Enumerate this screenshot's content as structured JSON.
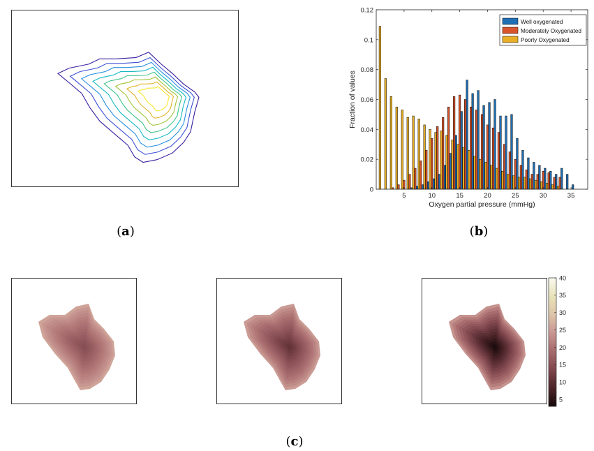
{
  "captions": {
    "a": "a",
    "b": "b",
    "c": "c"
  },
  "chart_data": [
    {
      "panel": "a",
      "type": "contour",
      "colors": [
        "#3a1e9e",
        "#3d4fd6",
        "#2a8fe0",
        "#16b9c4",
        "#3ec48a",
        "#a3c43b",
        "#e3b52b",
        "#f7e62a"
      ]
    },
    {
      "panel": "b",
      "type": "bar",
      "xlabel": "Oxygen partial pressure (mmHg)",
      "ylabel": "Fraction of values",
      "xlim": [
        0,
        38
      ],
      "ylim": [
        0,
        0.12
      ],
      "xticks": [
        5,
        10,
        15,
        20,
        25,
        30,
        35
      ],
      "yticks": [
        0,
        0.02,
        0.04,
        0.06,
        0.08,
        0.1,
        0.12
      ],
      "legend_position": "top-right",
      "x": [
        1,
        2,
        3,
        4,
        5,
        6,
        7,
        8,
        9,
        10,
        11,
        12,
        13,
        14,
        15,
        16,
        17,
        18,
        19,
        20,
        21,
        22,
        23,
        24,
        25,
        26,
        27,
        28,
        29,
        30,
        31,
        32,
        33,
        34,
        35,
        36,
        37
      ],
      "series": [
        {
          "name": "Well oxygenated",
          "color": "#1f6fb4",
          "values": [
            0,
            0,
            0,
            0,
            0,
            0.001,
            0.002,
            0.003,
            0.005,
            0.007,
            0.01,
            0.016,
            0.024,
            0.036,
            0.052,
            0.073,
            0.064,
            0.066,
            0.056,
            0.058,
            0.06,
            0.049,
            0.049,
            0.05,
            0.034,
            0.026,
            0.021,
            0.018,
            0.016,
            0.014,
            0.012,
            0.01,
            0.014,
            0.01,
            0.003,
            0,
            0
          ]
        },
        {
          "name": "Moderately Oxygenated",
          "color": "#d9542a",
          "values": [
            0,
            0,
            0.001,
            0.003,
            0.006,
            0.01,
            0.014,
            0.019,
            0.026,
            0.034,
            0.042,
            0.048,
            0.055,
            0.062,
            0.063,
            0.06,
            0.055,
            0.053,
            0.05,
            0.043,
            0.041,
            0.038,
            0.03,
            0.025,
            0.02,
            0.016,
            0.013,
            0.01,
            0.01,
            0.012,
            0.011,
            0.008,
            0.008,
            0,
            0,
            0,
            0
          ]
        },
        {
          "name": "Poorly Oxygenated",
          "color": "#e9ae25",
          "values": [
            0.109,
            0.074,
            0.062,
            0.055,
            0.053,
            0.048,
            0.049,
            0.047,
            0.043,
            0.04,
            0.038,
            0.039,
            0.036,
            0.033,
            0.03,
            0.028,
            0.026,
            0.022,
            0.02,
            0.018,
            0.016,
            0.014,
            0.012,
            0.01,
            0.009,
            0.008,
            0.008,
            0.007,
            0.006,
            0.005,
            0.004,
            0.003,
            0.002,
            0,
            0,
            0,
            0
          ]
        }
      ]
    },
    {
      "panel": "c",
      "type": "heatmap",
      "colorbar_ticks": [
        5,
        10,
        15,
        20,
        25,
        30,
        35,
        40
      ],
      "colorbar_range": [
        3,
        40
      ]
    }
  ]
}
